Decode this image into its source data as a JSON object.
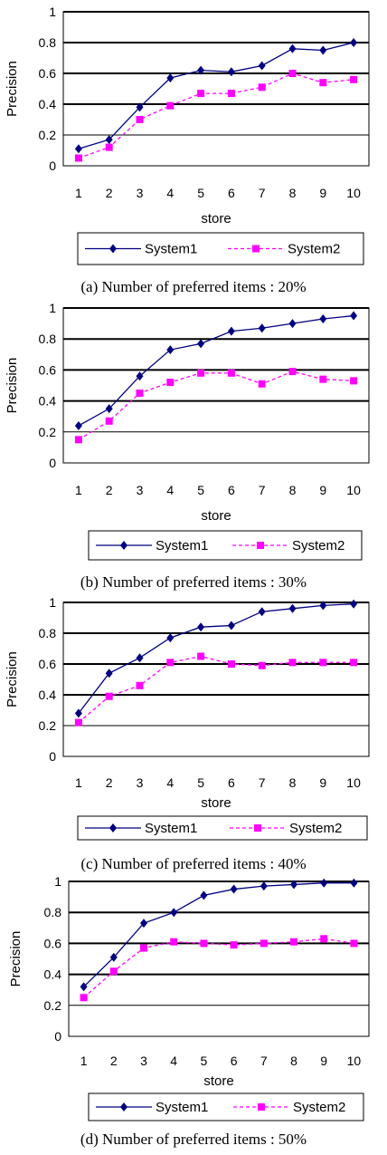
{
  "chart_data": [
    {
      "type": "line",
      "caption": "(a) Number of preferred items : 20%",
      "xlabel": "store",
      "ylabel": "Precision",
      "categories": [
        "1",
        "2",
        "3",
        "4",
        "5",
        "6",
        "7",
        "8",
        "9",
        "10"
      ],
      "y_ticks": [
        "0",
        "0.2",
        "0.4",
        "0.6",
        "0.8",
        "1"
      ],
      "ylim": [
        0,
        1
      ],
      "grid": "horizontal at 0.2-1.0",
      "legend": "bottom",
      "series": [
        {
          "name": "System1",
          "color": "#000080",
          "marker": "diamond",
          "line": "solid",
          "values": [
            0.11,
            0.17,
            0.38,
            0.57,
            0.62,
            0.61,
            0.65,
            0.76,
            0.75,
            0.8
          ]
        },
        {
          "name": "System2",
          "color": "#ff00ff",
          "marker": "square",
          "line": "dashed",
          "values": [
            0.05,
            0.12,
            0.3,
            0.39,
            0.47,
            0.47,
            0.51,
            0.6,
            0.54,
            0.56
          ]
        }
      ]
    },
    {
      "type": "line",
      "caption": "(b) Number of preferred items : 30%",
      "xlabel": "store",
      "ylabel": "Precision",
      "categories": [
        "1",
        "2",
        "3",
        "4",
        "5",
        "6",
        "7",
        "8",
        "9",
        "10"
      ],
      "y_ticks": [
        "0",
        "0.2",
        "0.4",
        "0.6",
        "0.8",
        "1"
      ],
      "ylim": [
        0,
        1
      ],
      "grid": "horizontal at 0.2-1.0",
      "legend": "bottom",
      "series": [
        {
          "name": "System1",
          "color": "#000080",
          "marker": "diamond",
          "line": "solid",
          "values": [
            0.24,
            0.35,
            0.56,
            0.73,
            0.77,
            0.85,
            0.87,
            0.9,
            0.93,
            0.95
          ]
        },
        {
          "name": "System2",
          "color": "#ff00ff",
          "marker": "square",
          "line": "dashed",
          "values": [
            0.15,
            0.27,
            0.45,
            0.52,
            0.58,
            0.58,
            0.51,
            0.59,
            0.54,
            0.53
          ]
        }
      ]
    },
    {
      "type": "line",
      "caption": "(c) Number of preferred items : 40%",
      "xlabel": "store",
      "ylabel": "Precision",
      "categories": [
        "1",
        "2",
        "3",
        "4",
        "5",
        "6",
        "7",
        "8",
        "9",
        "10"
      ],
      "y_ticks": [
        "0",
        "0.2",
        "0.4",
        "0.6",
        "0.8",
        "1"
      ],
      "ylim": [
        0,
        1
      ],
      "grid": "horizontal at 0.2-1.0",
      "legend": "bottom",
      "series": [
        {
          "name": "System1",
          "color": "#000080",
          "marker": "diamond",
          "line": "solid",
          "values": [
            0.28,
            0.54,
            0.64,
            0.77,
            0.84,
            0.85,
            0.94,
            0.96,
            0.98,
            0.99
          ]
        },
        {
          "name": "System2",
          "color": "#ff00ff",
          "marker": "square",
          "line": "dashed",
          "values": [
            0.22,
            0.39,
            0.46,
            0.61,
            0.65,
            0.6,
            0.59,
            0.61,
            0.61,
            0.61
          ]
        }
      ]
    },
    {
      "type": "line",
      "caption": "(d) Number of preferred items : 50%",
      "xlabel": "store",
      "ylabel": "Precision",
      "categories": [
        "1",
        "2",
        "3",
        "4",
        "5",
        "6",
        "7",
        "8",
        "9",
        "10"
      ],
      "y_ticks": [
        "0",
        "0.2",
        "0.4",
        "0.6",
        "0.8",
        "1"
      ],
      "ylim": [
        0,
        1
      ],
      "grid": "horizontal at 0.2-1.0",
      "legend": "bottom",
      "series": [
        {
          "name": "System1",
          "color": "#000080",
          "marker": "diamond",
          "line": "solid",
          "values": [
            0.32,
            0.51,
            0.73,
            0.8,
            0.91,
            0.95,
            0.97,
            0.98,
            0.99,
            0.99
          ]
        },
        {
          "name": "System2",
          "color": "#ff00ff",
          "marker": "square",
          "line": "dashed",
          "values": [
            0.25,
            0.42,
            0.57,
            0.61,
            0.6,
            0.59,
            0.6,
            0.61,
            0.63,
            0.6
          ]
        }
      ]
    }
  ]
}
